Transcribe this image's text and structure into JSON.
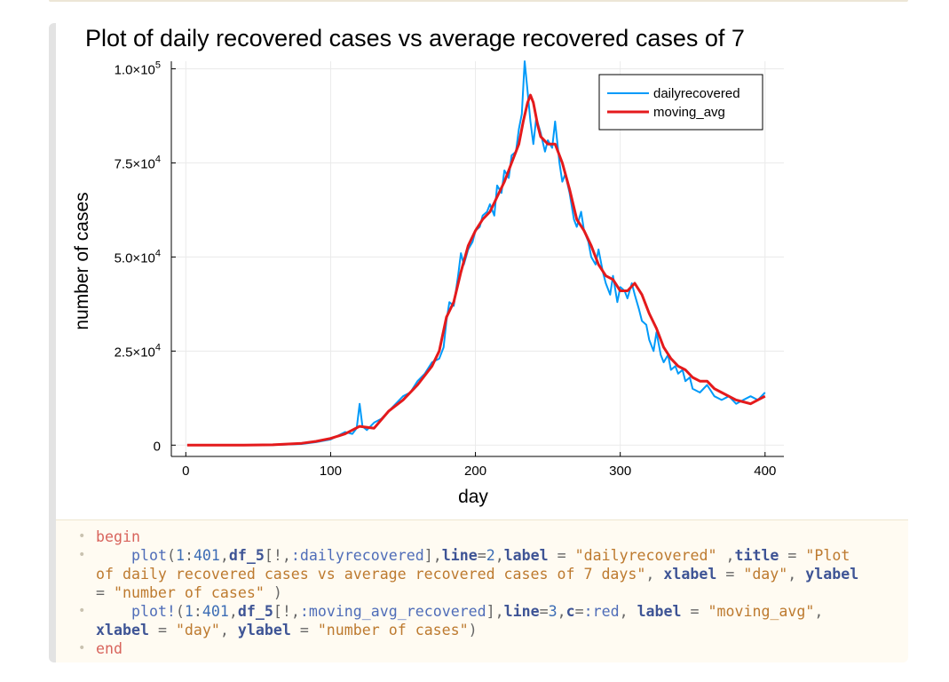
{
  "notebook": {
    "cell_code": {
      "lines": [
        {
          "parts": [
            {
              "c": "kw",
              "t": "begin"
            }
          ]
        },
        {
          "parts": [
            {
              "c": "op",
              "t": "    "
            },
            {
              "c": "fn",
              "t": "plot"
            },
            {
              "c": "op",
              "t": "("
            },
            {
              "c": "num",
              "t": "1"
            },
            {
              "c": "op",
              "t": ":"
            },
            {
              "c": "num",
              "t": "401"
            },
            {
              "c": "op",
              "t": ","
            },
            {
              "c": "arg",
              "t": "df_5"
            },
            {
              "c": "op",
              "t": "[!,"
            },
            {
              "c": "sym",
              "t": ":dailyrecovered"
            },
            {
              "c": "op",
              "t": "],"
            },
            {
              "c": "arg",
              "t": "line"
            },
            {
              "c": "op",
              "t": "="
            },
            {
              "c": "num",
              "t": "2"
            },
            {
              "c": "op",
              "t": ","
            },
            {
              "c": "arg",
              "t": "label"
            },
            {
              "c": "op",
              "t": " = "
            },
            {
              "c": "str",
              "t": "\"dailyrecovered\""
            },
            {
              "c": "op",
              "t": " ,"
            },
            {
              "c": "arg",
              "t": "title"
            },
            {
              "c": "op",
              "t": " = "
            },
            {
              "c": "str",
              "t": "\"Plot"
            }
          ]
        },
        {
          "parts": [
            {
              "c": "str",
              "t": "of daily recovered cases vs average recovered cases of 7 days\""
            },
            {
              "c": "op",
              "t": ", "
            },
            {
              "c": "arg",
              "t": "xlabel"
            },
            {
              "c": "op",
              "t": " = "
            },
            {
              "c": "str",
              "t": "\"day\""
            },
            {
              "c": "op",
              "t": ", "
            },
            {
              "c": "arg",
              "t": "ylabel"
            }
          ]
        },
        {
          "parts": [
            {
              "c": "op",
              "t": "= "
            },
            {
              "c": "str",
              "t": "\"number of cases\""
            },
            {
              "c": "op",
              "t": " )"
            }
          ]
        },
        {
          "parts": [
            {
              "c": "op",
              "t": "    "
            },
            {
              "c": "fn",
              "t": "plot!"
            },
            {
              "c": "op",
              "t": "("
            },
            {
              "c": "num",
              "t": "1"
            },
            {
              "c": "op",
              "t": ":"
            },
            {
              "c": "num",
              "t": "401"
            },
            {
              "c": "op",
              "t": ","
            },
            {
              "c": "arg",
              "t": "df_5"
            },
            {
              "c": "op",
              "t": "[!,"
            },
            {
              "c": "sym",
              "t": ":moving_avg_recovered"
            },
            {
              "c": "op",
              "t": "],"
            },
            {
              "c": "arg",
              "t": "line"
            },
            {
              "c": "op",
              "t": "="
            },
            {
              "c": "num",
              "t": "3"
            },
            {
              "c": "op",
              "t": ","
            },
            {
              "c": "arg",
              "t": "c"
            },
            {
              "c": "op",
              "t": "="
            },
            {
              "c": "sym",
              "t": ":red"
            },
            {
              "c": "op",
              "t": ", "
            },
            {
              "c": "arg",
              "t": "label"
            },
            {
              "c": "op",
              "t": " = "
            },
            {
              "c": "str",
              "t": "\"moving_avg\""
            },
            {
              "c": "op",
              "t": ","
            }
          ]
        },
        {
          "parts": [
            {
              "c": "arg",
              "t": "xlabel"
            },
            {
              "c": "op",
              "t": " = "
            },
            {
              "c": "str",
              "t": "\"day\""
            },
            {
              "c": "op",
              "t": ", "
            },
            {
              "c": "arg",
              "t": "ylabel"
            },
            {
              "c": "op",
              "t": " = "
            },
            {
              "c": "str",
              "t": "\"number of cases\""
            },
            {
              "c": "op",
              "t": ")"
            }
          ]
        },
        {
          "parts": [
            {
              "c": "kw",
              "t": "end"
            }
          ]
        }
      ],
      "bullet_rows": [
        0,
        1,
        4,
        6
      ],
      "bullet_glyph": "•"
    }
  },
  "chart_data": {
    "type": "line",
    "title": "Plot of daily recovered cases vs average recovered cases of 7",
    "xlabel": "day",
    "ylabel": "number of cases",
    "xlim": [
      -10,
      413
    ],
    "ylim": [
      -3000,
      102000
    ],
    "xticks": [
      0,
      100,
      200,
      300,
      400
    ],
    "xtick_labels": [
      "0",
      "100",
      "200",
      "300",
      "400"
    ],
    "yticks": [
      0,
      25000,
      50000,
      75000,
      100000
    ],
    "ytick_labels": [
      {
        "mant": "0",
        "exp": ""
      },
      {
        "mant": "2.5×10",
        "exp": "4"
      },
      {
        "mant": "5.0×10",
        "exp": "4"
      },
      {
        "mant": "7.5×10",
        "exp": "4"
      },
      {
        "mant": "1.0×10",
        "exp": "5"
      }
    ],
    "grid": true,
    "legend_position": "top-right",
    "series": [
      {
        "name": "dailyrecovered",
        "color": "#009af9",
        "line_width": 2,
        "x": [
          1,
          20,
          40,
          60,
          80,
          90,
          100,
          105,
          110,
          115,
          118,
          120,
          122,
          125,
          130,
          135,
          140,
          145,
          150,
          155,
          160,
          165,
          170,
          175,
          178,
          180,
          182,
          185,
          188,
          190,
          192,
          195,
          198,
          200,
          203,
          205,
          208,
          210,
          213,
          215,
          218,
          220,
          223,
          225,
          228,
          230,
          232,
          234,
          236,
          238,
          240,
          242,
          245,
          248,
          250,
          253,
          255,
          258,
          260,
          262,
          265,
          268,
          270,
          273,
          275,
          278,
          280,
          283,
          285,
          288,
          290,
          293,
          295,
          298,
          300,
          303,
          305,
          308,
          310,
          313,
          315,
          318,
          320,
          323,
          325,
          328,
          330,
          333,
          335,
          338,
          340,
          343,
          345,
          348,
          350,
          355,
          360,
          365,
          370,
          375,
          380,
          385,
          390,
          395,
          400
        ],
        "y": [
          0,
          0,
          0,
          50,
          300,
          800,
          1500,
          2500,
          3500,
          3000,
          4500,
          11000,
          5000,
          4000,
          6000,
          7000,
          9000,
          11000,
          13000,
          14000,
          17000,
          19000,
          22000,
          23000,
          26000,
          33000,
          38000,
          37000,
          45000,
          51000,
          48000,
          52000,
          54000,
          57000,
          58000,
          61000,
          62000,
          64000,
          61000,
          69000,
          67000,
          73000,
          71000,
          77000,
          78000,
          84000,
          88000,
          102000,
          94000,
          86000,
          80000,
          87000,
          83000,
          78000,
          81000,
          79000,
          86000,
          75000,
          70000,
          72000,
          67000,
          60000,
          58000,
          62000,
          57000,
          54000,
          50000,
          48000,
          52000,
          46000,
          43000,
          40000,
          45000,
          38000,
          42000,
          41000,
          39000,
          43000,
          40000,
          36000,
          33000,
          32000,
          28000,
          25000,
          30000,
          24000,
          22000,
          24000,
          20000,
          21000,
          19000,
          20000,
          17000,
          18000,
          15000,
          14000,
          16000,
          13000,
          12000,
          13000,
          11000,
          12000,
          13000,
          12000,
          14000
        ]
      },
      {
        "name": "moving_avg",
        "color": "#e41a1c",
        "line_width": 3,
        "x": [
          1,
          20,
          40,
          60,
          80,
          90,
          100,
          110,
          120,
          130,
          140,
          150,
          160,
          170,
          175,
          180,
          185,
          190,
          195,
          200,
          205,
          210,
          215,
          220,
          225,
          230,
          233,
          236,
          238,
          240,
          243,
          245,
          250,
          255,
          260,
          265,
          270,
          275,
          280,
          285,
          290,
          295,
          300,
          305,
          310,
          315,
          320,
          325,
          330,
          335,
          340,
          345,
          350,
          355,
          360,
          365,
          370,
          375,
          380,
          385,
          390,
          395,
          400
        ],
        "y": [
          0,
          0,
          0,
          100,
          500,
          1000,
          1800,
          3000,
          5000,
          4500,
          9000,
          12000,
          16000,
          21000,
          25000,
          34000,
          38000,
          46000,
          53000,
          57000,
          60000,
          62000,
          66000,
          70000,
          75000,
          80000,
          86000,
          91000,
          93000,
          91000,
          85000,
          82000,
          80000,
          80000,
          75000,
          68000,
          60000,
          57000,
          53000,
          48000,
          45000,
          44000,
          41000,
          41000,
          43000,
          40000,
          35000,
          31000,
          26000,
          23000,
          21000,
          20000,
          18000,
          17000,
          17000,
          15000,
          14000,
          13000,
          12000,
          11500,
          11000,
          12000,
          13000
        ]
      }
    ]
  }
}
